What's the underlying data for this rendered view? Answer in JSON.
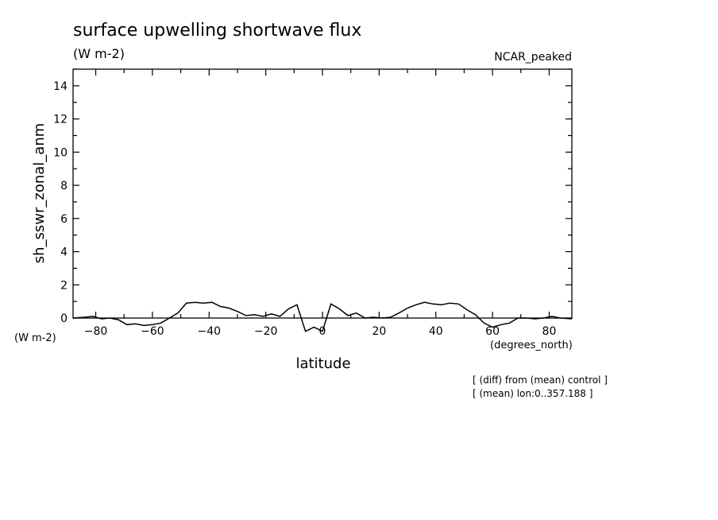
{
  "chart_data": {
    "type": "line",
    "title": "surface upwelling shortwave flux",
    "units": "(W m-2)",
    "model_label": "NCAR_peaked",
    "xlabel": "latitude",
    "x_units": "(degrees_north)",
    "ylabel": "sh_sswr_zonal_anm",
    "y_units": "(W m-2)",
    "xlim": [
      -88,
      88
    ],
    "ylim": [
      0,
      15
    ],
    "x_ticks": [
      "-80",
      "-60",
      "-40",
      "-20",
      "0",
      "20",
      "40",
      "60",
      "80"
    ],
    "y_ticks": [
      "0",
      "2",
      "4",
      "6",
      "8",
      "10",
      "12",
      "14"
    ],
    "notes": [
      "[ (diff) from (mean) control ]",
      "[ (mean) lon:0..357.188 ]"
    ],
    "series": [
      {
        "x": [
          -88,
          -84,
          -81,
          -78,
          -75,
          -72,
          -69,
          -66,
          -63,
          -60,
          -57,
          -54,
          -51,
          -48,
          -45,
          -42,
          -39,
          -36,
          -33,
          -30,
          -27,
          -24,
          -21,
          -18,
          -15,
          -12,
          -9,
          -6,
          -3,
          0,
          3,
          6,
          9,
          12,
          15,
          18,
          21,
          24,
          27,
          30,
          33,
          36,
          39,
          42,
          45,
          48,
          51,
          54,
          57,
          60,
          63,
          66,
          69,
          72,
          75,
          78,
          81,
          84,
          88
        ],
        "y": [
          0.0,
          0.05,
          0.1,
          -0.05,
          0.0,
          -0.1,
          -0.4,
          -0.35,
          -0.45,
          -0.4,
          -0.3,
          0.0,
          0.3,
          0.9,
          0.95,
          0.9,
          0.95,
          0.7,
          0.6,
          0.4,
          0.15,
          0.2,
          0.1,
          0.25,
          0.1,
          0.55,
          0.8,
          -0.8,
          -0.55,
          -0.8,
          0.85,
          0.55,
          0.15,
          0.3,
          0.0,
          0.05,
          0.0,
          0.05,
          0.3,
          0.6,
          0.8,
          0.95,
          0.85,
          0.8,
          0.9,
          0.85,
          0.5,
          0.2,
          -0.3,
          -0.55,
          -0.4,
          -0.3,
          0.0,
          0.0,
          -0.05,
          0.0,
          0.1,
          0.0,
          -0.05
        ]
      }
    ]
  }
}
